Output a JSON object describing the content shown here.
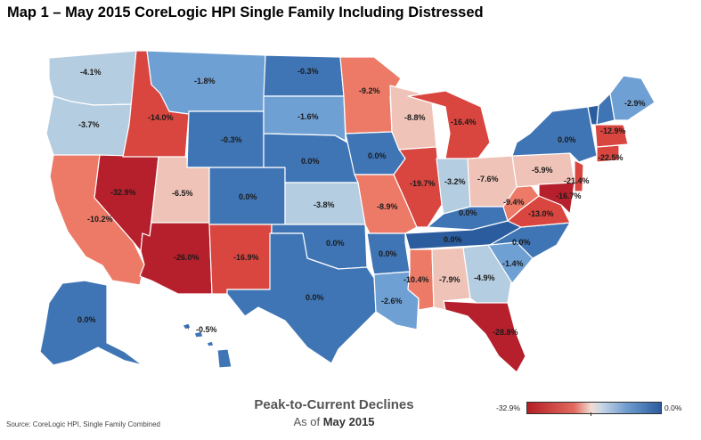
{
  "title": "Map 1 – May 2015 CoreLogic HPI Single Family Including Distressed",
  "legend": {
    "title": "Peak-to-Current Declines",
    "subtitle_prefix": "As of ",
    "subtitle_date": "May 2015",
    "min_label": "-32.9%",
    "max_label": "0.0%"
  },
  "source": "Source: CoreLogic HPI, Single Family Combined",
  "colors": {
    "deep_red": "#b51e26",
    "red": "#d9453f",
    "salmon": "#ec7a67",
    "light_pink": "#efc3b7",
    "light_blue": "#b5cde0",
    "mid_blue": "#6fa0d4",
    "blue": "#3f75b5",
    "dark_blue": "#2b5c9e"
  },
  "map_data": {
    "type": "choropleth",
    "metric": "Peak-to-current decline",
    "states": [
      {
        "state": "WA",
        "value": "-4.1%"
      },
      {
        "state": "OR",
        "value": "-3.7%"
      },
      {
        "state": "CA",
        "value": "-10.2%"
      },
      {
        "state": "NV",
        "value": "-32.9%"
      },
      {
        "state": "ID",
        "value": "-14.0%"
      },
      {
        "state": "MT",
        "value": "-1.8%"
      },
      {
        "state": "WY",
        "value": "-0.3%"
      },
      {
        "state": "UT",
        "value": "-6.5%"
      },
      {
        "state": "AZ",
        "value": "-26.0%"
      },
      {
        "state": "CO",
        "value": "0.0%"
      },
      {
        "state": "NM",
        "value": "-16.9%"
      },
      {
        "state": "ND",
        "value": "-0.3%"
      },
      {
        "state": "SD",
        "value": "-1.6%"
      },
      {
        "state": "NE",
        "value": "0.0%"
      },
      {
        "state": "KS",
        "value": "-3.8%"
      },
      {
        "state": "OK",
        "value": "0.0%"
      },
      {
        "state": "TX",
        "value": "0.0%"
      },
      {
        "state": "MN",
        "value": "-9.2%"
      },
      {
        "state": "IA",
        "value": "0.0%"
      },
      {
        "state": "MO",
        "value": "-8.9%"
      },
      {
        "state": "AR",
        "value": "0.0%"
      },
      {
        "state": "LA",
        "value": "-2.6%"
      },
      {
        "state": "WI",
        "value": "-8.8%"
      },
      {
        "state": "IL",
        "value": "-19.7%"
      },
      {
        "state": "MI",
        "value": "-16.4%"
      },
      {
        "state": "IN",
        "value": "-3.2%"
      },
      {
        "state": "OH",
        "value": "-7.6%"
      },
      {
        "state": "KY",
        "value": "0.0%"
      },
      {
        "state": "TN",
        "value": "0.0%"
      },
      {
        "state": "MS",
        "value": "-10.4%"
      },
      {
        "state": "AL",
        "value": "-7.9%"
      },
      {
        "state": "GA",
        "value": "-4.9%"
      },
      {
        "state": "FL",
        "value": "-28.8%"
      },
      {
        "state": "SC",
        "value": "-1.4%"
      },
      {
        "state": "NC",
        "value": "0.0%"
      },
      {
        "state": "VA",
        "value": "-13.0%"
      },
      {
        "state": "WV",
        "value": "-9.4%"
      },
      {
        "state": "PA",
        "value": "-5.9%"
      },
      {
        "state": "NY",
        "value": "0.0%"
      },
      {
        "state": "MD",
        "value": "-16.7%"
      },
      {
        "state": "NJ",
        "value": "-21.4%"
      },
      {
        "state": "CT",
        "value": "-22.5%"
      },
      {
        "state": "MA",
        "value": "-12.9%"
      },
      {
        "state": "ME",
        "value": "-2.9%"
      },
      {
        "state": "AK",
        "value": "0.0%"
      },
      {
        "state": "HI",
        "value": "-0.5%"
      }
    ]
  }
}
